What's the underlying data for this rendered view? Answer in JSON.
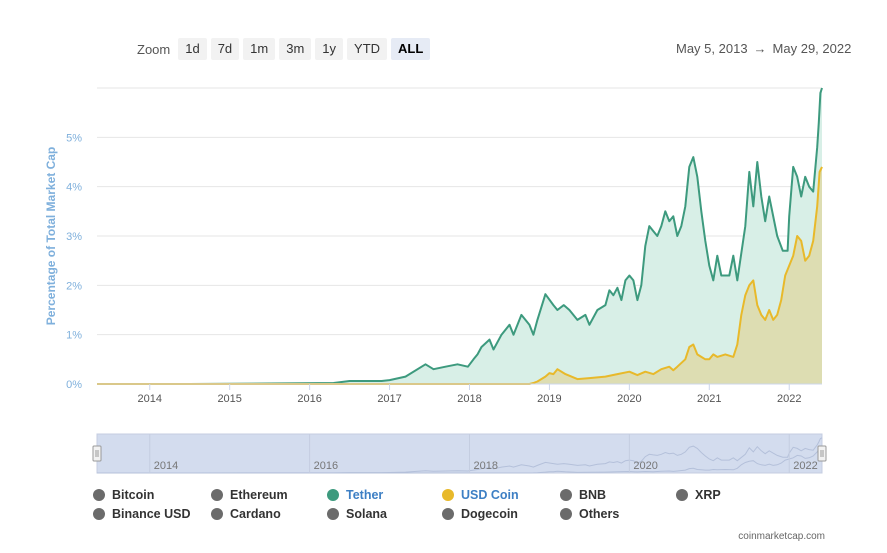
{
  "toolbar": {
    "zoom_label": "Zoom",
    "buttons": [
      "1d",
      "7d",
      "1m",
      "3m",
      "1y",
      "YTD",
      "ALL"
    ],
    "active": "ALL"
  },
  "range": {
    "from": "May 5, 2013",
    "arrow": "→",
    "to": "May 29, 2022"
  },
  "chart_data": {
    "type": "area",
    "ylabel": "Percentage of Total Market Cap",
    "ylim": [
      0,
      6
    ],
    "yticks": [
      "0%",
      "1%",
      "2%",
      "3%",
      "4%",
      "5%"
    ],
    "xlim": [
      2013.34,
      2022.41
    ],
    "xticks": [
      "2014",
      "2015",
      "2016",
      "2017",
      "2018",
      "2019",
      "2020",
      "2021",
      "2022"
    ],
    "grid": true,
    "series": [
      {
        "name": "Tether",
        "color": "#3d9a7e",
        "fill": "#d8efe7",
        "points": [
          [
            2013.34,
            0
          ],
          [
            2014.5,
            0
          ],
          [
            2015.5,
            0.01
          ],
          [
            2016.3,
            0.02
          ],
          [
            2016.5,
            0.06
          ],
          [
            2016.9,
            0.06
          ],
          [
            2017.0,
            0.08
          ],
          [
            2017.2,
            0.15
          ],
          [
            2017.45,
            0.4
          ],
          [
            2017.55,
            0.3
          ],
          [
            2017.7,
            0.35
          ],
          [
            2017.85,
            0.4
          ],
          [
            2017.98,
            0.35
          ],
          [
            2018.05,
            0.5
          ],
          [
            2018.1,
            0.6
          ],
          [
            2018.15,
            0.75
          ],
          [
            2018.25,
            0.9
          ],
          [
            2018.3,
            0.7
          ],
          [
            2018.4,
            1.0
          ],
          [
            2018.5,
            1.2
          ],
          [
            2018.55,
            1.0
          ],
          [
            2018.65,
            1.4
          ],
          [
            2018.75,
            1.2
          ],
          [
            2018.8,
            1.0
          ],
          [
            2018.85,
            1.3
          ],
          [
            2018.95,
            1.82
          ],
          [
            2019.05,
            1.6
          ],
          [
            2019.1,
            1.5
          ],
          [
            2019.18,
            1.6
          ],
          [
            2019.25,
            1.5
          ],
          [
            2019.35,
            1.3
          ],
          [
            2019.45,
            1.4
          ],
          [
            2019.5,
            1.2
          ],
          [
            2019.6,
            1.5
          ],
          [
            2019.7,
            1.6
          ],
          [
            2019.75,
            1.9
          ],
          [
            2019.8,
            1.8
          ],
          [
            2019.85,
            1.95
          ],
          [
            2019.9,
            1.7
          ],
          [
            2019.95,
            2.1
          ],
          [
            2020.0,
            2.2
          ],
          [
            2020.05,
            2.1
          ],
          [
            2020.1,
            1.7
          ],
          [
            2020.15,
            2.0
          ],
          [
            2020.2,
            2.8
          ],
          [
            2020.25,
            3.2
          ],
          [
            2020.3,
            3.1
          ],
          [
            2020.35,
            3.0
          ],
          [
            2020.4,
            3.2
          ],
          [
            2020.45,
            3.5
          ],
          [
            2020.5,
            3.3
          ],
          [
            2020.55,
            3.4
          ],
          [
            2020.6,
            3.0
          ],
          [
            2020.65,
            3.2
          ],
          [
            2020.7,
            3.6
          ],
          [
            2020.75,
            4.4
          ],
          [
            2020.8,
            4.6
          ],
          [
            2020.85,
            4.2
          ],
          [
            2020.9,
            3.5
          ],
          [
            2020.95,
            2.9
          ],
          [
            2021.0,
            2.4
          ],
          [
            2021.05,
            2.1
          ],
          [
            2021.1,
            2.6
          ],
          [
            2021.15,
            2.2
          ],
          [
            2021.25,
            2.2
          ],
          [
            2021.3,
            2.6
          ],
          [
            2021.35,
            2.1
          ],
          [
            2021.45,
            3.2
          ],
          [
            2021.5,
            4.3
          ],
          [
            2021.55,
            3.6
          ],
          [
            2021.6,
            4.5
          ],
          [
            2021.65,
            3.8
          ],
          [
            2021.7,
            3.3
          ],
          [
            2021.75,
            3.8
          ],
          [
            2021.85,
            3.0
          ],
          [
            2021.92,
            2.7
          ],
          [
            2021.98,
            2.7
          ],
          [
            2022.0,
            3.4
          ],
          [
            2022.05,
            4.4
          ],
          [
            2022.1,
            4.2
          ],
          [
            2022.15,
            3.8
          ],
          [
            2022.2,
            4.2
          ],
          [
            2022.25,
            4.0
          ],
          [
            2022.3,
            3.9
          ],
          [
            2022.35,
            4.8
          ],
          [
            2022.37,
            5.3
          ],
          [
            2022.39,
            5.9
          ],
          [
            2022.41,
            6.0
          ]
        ]
      },
      {
        "name": "USD Coin",
        "color": "#e8b92a",
        "fill": "#ded9a8",
        "points": [
          [
            2013.34,
            0
          ],
          [
            2018.75,
            0
          ],
          [
            2018.8,
            0.02
          ],
          [
            2018.85,
            0.05
          ],
          [
            2018.95,
            0.15
          ],
          [
            2019.0,
            0.22
          ],
          [
            2019.05,
            0.2
          ],
          [
            2019.1,
            0.3
          ],
          [
            2019.2,
            0.2
          ],
          [
            2019.35,
            0.1
          ],
          [
            2019.5,
            0.12
          ],
          [
            2019.7,
            0.15
          ],
          [
            2019.85,
            0.2
          ],
          [
            2020.0,
            0.25
          ],
          [
            2020.1,
            0.18
          ],
          [
            2020.2,
            0.25
          ],
          [
            2020.3,
            0.2
          ],
          [
            2020.4,
            0.3
          ],
          [
            2020.5,
            0.35
          ],
          [
            2020.55,
            0.28
          ],
          [
            2020.6,
            0.35
          ],
          [
            2020.7,
            0.5
          ],
          [
            2020.75,
            0.75
          ],
          [
            2020.8,
            0.8
          ],
          [
            2020.85,
            0.6
          ],
          [
            2020.9,
            0.55
          ],
          [
            2020.95,
            0.5
          ],
          [
            2021.0,
            0.5
          ],
          [
            2021.05,
            0.6
          ],
          [
            2021.1,
            0.55
          ],
          [
            2021.2,
            0.6
          ],
          [
            2021.3,
            0.55
          ],
          [
            2021.35,
            0.8
          ],
          [
            2021.4,
            1.4
          ],
          [
            2021.45,
            1.8
          ],
          [
            2021.5,
            2.0
          ],
          [
            2021.55,
            2.1
          ],
          [
            2021.6,
            1.6
          ],
          [
            2021.65,
            1.4
          ],
          [
            2021.7,
            1.3
          ],
          [
            2021.75,
            1.5
          ],
          [
            2021.8,
            1.3
          ],
          [
            2021.85,
            1.4
          ],
          [
            2021.9,
            1.7
          ],
          [
            2021.95,
            2.2
          ],
          [
            2022.0,
            2.4
          ],
          [
            2022.05,
            2.6
          ],
          [
            2022.1,
            3.0
          ],
          [
            2022.15,
            2.9
          ],
          [
            2022.2,
            2.5
          ],
          [
            2022.25,
            2.6
          ],
          [
            2022.3,
            2.9
          ],
          [
            2022.35,
            3.6
          ],
          [
            2022.38,
            4.3
          ],
          [
            2022.41,
            4.4
          ]
        ]
      }
    ]
  },
  "navigator": {
    "labels": [
      "2014",
      "2016",
      "2018",
      "2020",
      "2022"
    ],
    "years": [
      2014,
      2016,
      2018,
      2020,
      2022
    ]
  },
  "legend": [
    {
      "label": "Bitcoin",
      "color": "#6b6b6b",
      "active": false
    },
    {
      "label": "Ethereum",
      "color": "#6b6b6b",
      "active": false
    },
    {
      "label": "Tether",
      "color": "#3d9a7e",
      "active": true
    },
    {
      "label": "USD Coin",
      "color": "#e8b92a",
      "active": true
    },
    {
      "label": "BNB",
      "color": "#6b6b6b",
      "active": false
    },
    {
      "label": "XRP",
      "color": "#6b6b6b",
      "active": false
    },
    {
      "label": "Binance USD",
      "color": "#6b6b6b",
      "active": false
    },
    {
      "label": "Cardano",
      "color": "#6b6b6b",
      "active": false
    },
    {
      "label": "Solana",
      "color": "#6b6b6b",
      "active": false
    },
    {
      "label": "Dogecoin",
      "color": "#6b6b6b",
      "active": false
    },
    {
      "label": "Others",
      "color": "#6b6b6b",
      "active": false
    }
  ],
  "active_legend_colors": {
    "Tether": "#3d7fc4",
    "USD Coin": "#3d7fc4"
  },
  "credit": "coinmarketcap.com",
  "colors": {
    "axis_label": "#7fb0dc",
    "tick": "#555555",
    "grid": "#e6e6e6",
    "navigator_fill": "#d3dcee"
  }
}
